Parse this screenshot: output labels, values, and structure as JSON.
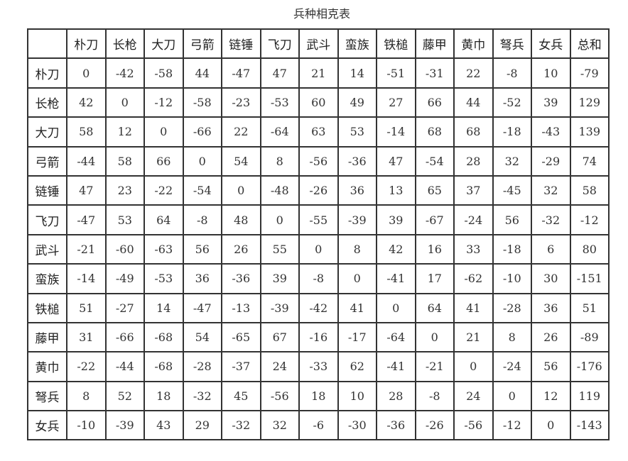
{
  "title": "兵种相克表",
  "columns": [
    "朴刀",
    "长枪",
    "大刀",
    "弓箭",
    "链锤",
    "飞刀",
    "武斗",
    "蛮族",
    "铁槌",
    "藤甲",
    "黄巾",
    "弩兵",
    "女兵",
    "总和"
  ],
  "rows": [
    {
      "label": "朴刀",
      "values": [
        "0",
        "-42",
        "-58",
        "44",
        "-47",
        "47",
        "21",
        "14",
        "-51",
        "-31",
        "22",
        "-8",
        "10",
        "-79"
      ]
    },
    {
      "label": "长枪",
      "values": [
        "42",
        "0",
        "-12",
        "-58",
        "-23",
        "-53",
        "60",
        "49",
        "27",
        "66",
        "44",
        "-52",
        "39",
        "129"
      ]
    },
    {
      "label": "大刀",
      "values": [
        "58",
        "12",
        "0",
        "-66",
        "22",
        "-64",
        "63",
        "53",
        "-14",
        "68",
        "68",
        "-18",
        "-43",
        "139"
      ]
    },
    {
      "label": "弓箭",
      "values": [
        "-44",
        "58",
        "66",
        "0",
        "54",
        "8",
        "-56",
        "-36",
        "47",
        "-54",
        "28",
        "32",
        "-29",
        "74"
      ]
    },
    {
      "label": "链锤",
      "values": [
        "47",
        "23",
        "-22",
        "-54",
        "0",
        "-48",
        "-26",
        "36",
        "13",
        "65",
        "37",
        "-45",
        "32",
        "58"
      ]
    },
    {
      "label": "飞刀",
      "values": [
        "-47",
        "53",
        "64",
        "-8",
        "48",
        "0",
        "-55",
        "-39",
        "39",
        "-67",
        "-24",
        "56",
        "-32",
        "-12"
      ]
    },
    {
      "label": "武斗",
      "values": [
        "-21",
        "-60",
        "-63",
        "56",
        "26",
        "55",
        "0",
        "8",
        "42",
        "16",
        "33",
        "-18",
        "6",
        "80"
      ]
    },
    {
      "label": "蛮族",
      "values": [
        "-14",
        "-49",
        "-53",
        "36",
        "-36",
        "39",
        "-8",
        "0",
        "-41",
        "17",
        "-62",
        "-10",
        "30",
        "-151"
      ]
    },
    {
      "label": "铁槌",
      "values": [
        "51",
        "-27",
        "14",
        "-47",
        "-13",
        "-39",
        "-42",
        "41",
        "0",
        "64",
        "41",
        "-28",
        "36",
        "51"
      ]
    },
    {
      "label": "藤甲",
      "values": [
        "31",
        "-66",
        "-68",
        "54",
        "-65",
        "67",
        "-16",
        "-17",
        "-64",
        "0",
        "21",
        "8",
        "26",
        "-89"
      ]
    },
    {
      "label": "黄巾",
      "values": [
        "-22",
        "-44",
        "-68",
        "-28",
        "-37",
        "24",
        "-33",
        "62",
        "-41",
        "-21",
        "0",
        "-24",
        "56",
        "-176"
      ]
    },
    {
      "label": "弩兵",
      "values": [
        "8",
        "52",
        "18",
        "-32",
        "45",
        "-56",
        "18",
        "10",
        "28",
        "-8",
        "24",
        "0",
        "12",
        "119"
      ]
    },
    {
      "label": "女兵",
      "values": [
        "-10",
        "-39",
        "43",
        "29",
        "-32",
        "32",
        "-6",
        "-30",
        "-36",
        "-26",
        "-56",
        "-12",
        "0",
        "-143"
      ]
    }
  ]
}
